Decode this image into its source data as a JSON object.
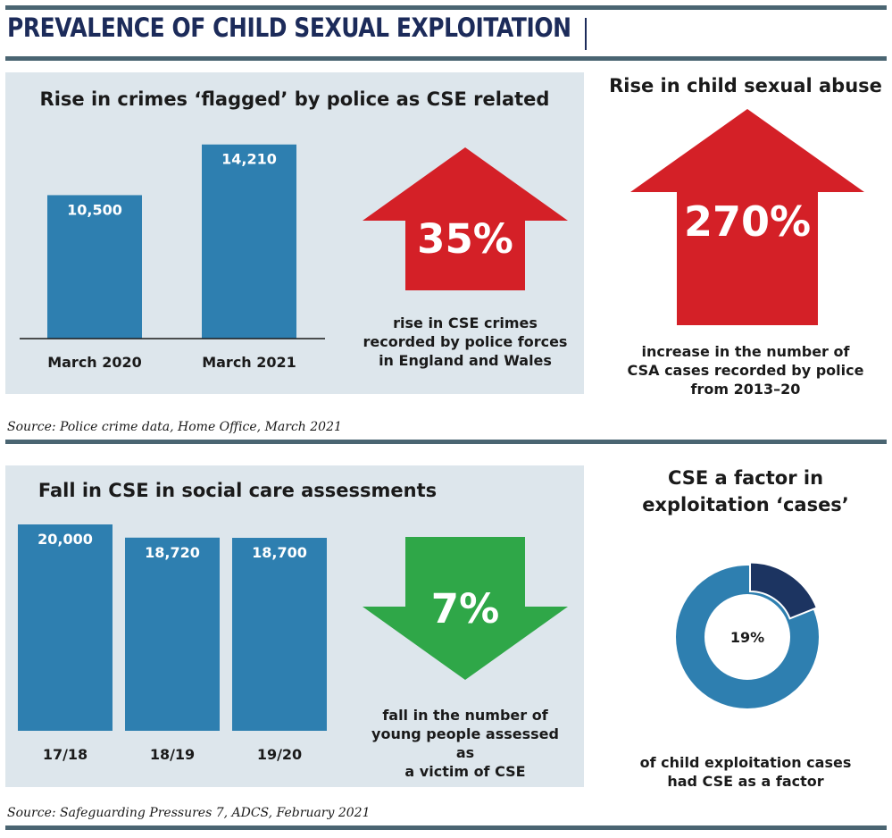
{
  "title": "PREVALENCE OF CHILD SEXUAL EXPLOITATION",
  "colors": {
    "bar": "#2e7fb0",
    "arrow_up": "#d42027",
    "arrow_down": "#2fa748",
    "panel_bg": "#dde6ec",
    "donut_main": "#2e7fb0",
    "donut_share": "#1c3461",
    "title": "#1c2b5a"
  },
  "section1": {
    "chart_title": "Rise in crimes ‘flagged’ by police as CSE related",
    "stat": {
      "value": "35%",
      "direction": "up",
      "caption_lines": [
        "rise in CSE crimes",
        "recorded by police forces",
        "in England and Wales"
      ]
    },
    "right": {
      "title": "Rise in child sexual abuse",
      "stat": "270%",
      "direction": "up",
      "caption_lines": [
        "increase in the number of",
        "CSA cases recorded by police",
        "from 2013–20"
      ]
    },
    "source": "Source: Police crime data, Home Office, March 2021"
  },
  "section2": {
    "chart_title": "Fall in CSE in social care assessments",
    "stat": {
      "value": "7%",
      "direction": "down",
      "caption_lines": [
        "fall in the number of",
        "young people assessed as",
        "a victim of CSE"
      ]
    },
    "right": {
      "title_lines": [
        "CSE a factor in",
        "exploitation ‘cases’"
      ],
      "caption_lines": [
        "of child exploitation cases",
        "had CSE as a factor"
      ]
    },
    "source": "Source: Safeguarding Pressures 7, ADCS, February 2021"
  },
  "chart_data": [
    {
      "type": "bar",
      "title": "Rise in crimes ‘flagged’ by police as CSE related",
      "categories": [
        "March 2020",
        "March 2021"
      ],
      "values": [
        10500,
        14210
      ],
      "value_labels": [
        "10,500",
        "14,210"
      ],
      "ylim": [
        0,
        15500
      ]
    },
    {
      "type": "bar",
      "title": "Fall in CSE in social care assessments",
      "categories": [
        "17/18",
        "18/19",
        "19/20"
      ],
      "values": [
        20000,
        18720,
        18700
      ],
      "value_labels": [
        "20,000",
        "18,720",
        "18,700"
      ],
      "ylim": [
        0,
        20000
      ]
    },
    {
      "type": "pie",
      "title": "CSE a factor in exploitation ‘cases’",
      "slices": [
        {
          "label": "19%",
          "value": 19
        },
        {
          "label": "",
          "value": 81
        }
      ],
      "center_label": "19%"
    }
  ]
}
